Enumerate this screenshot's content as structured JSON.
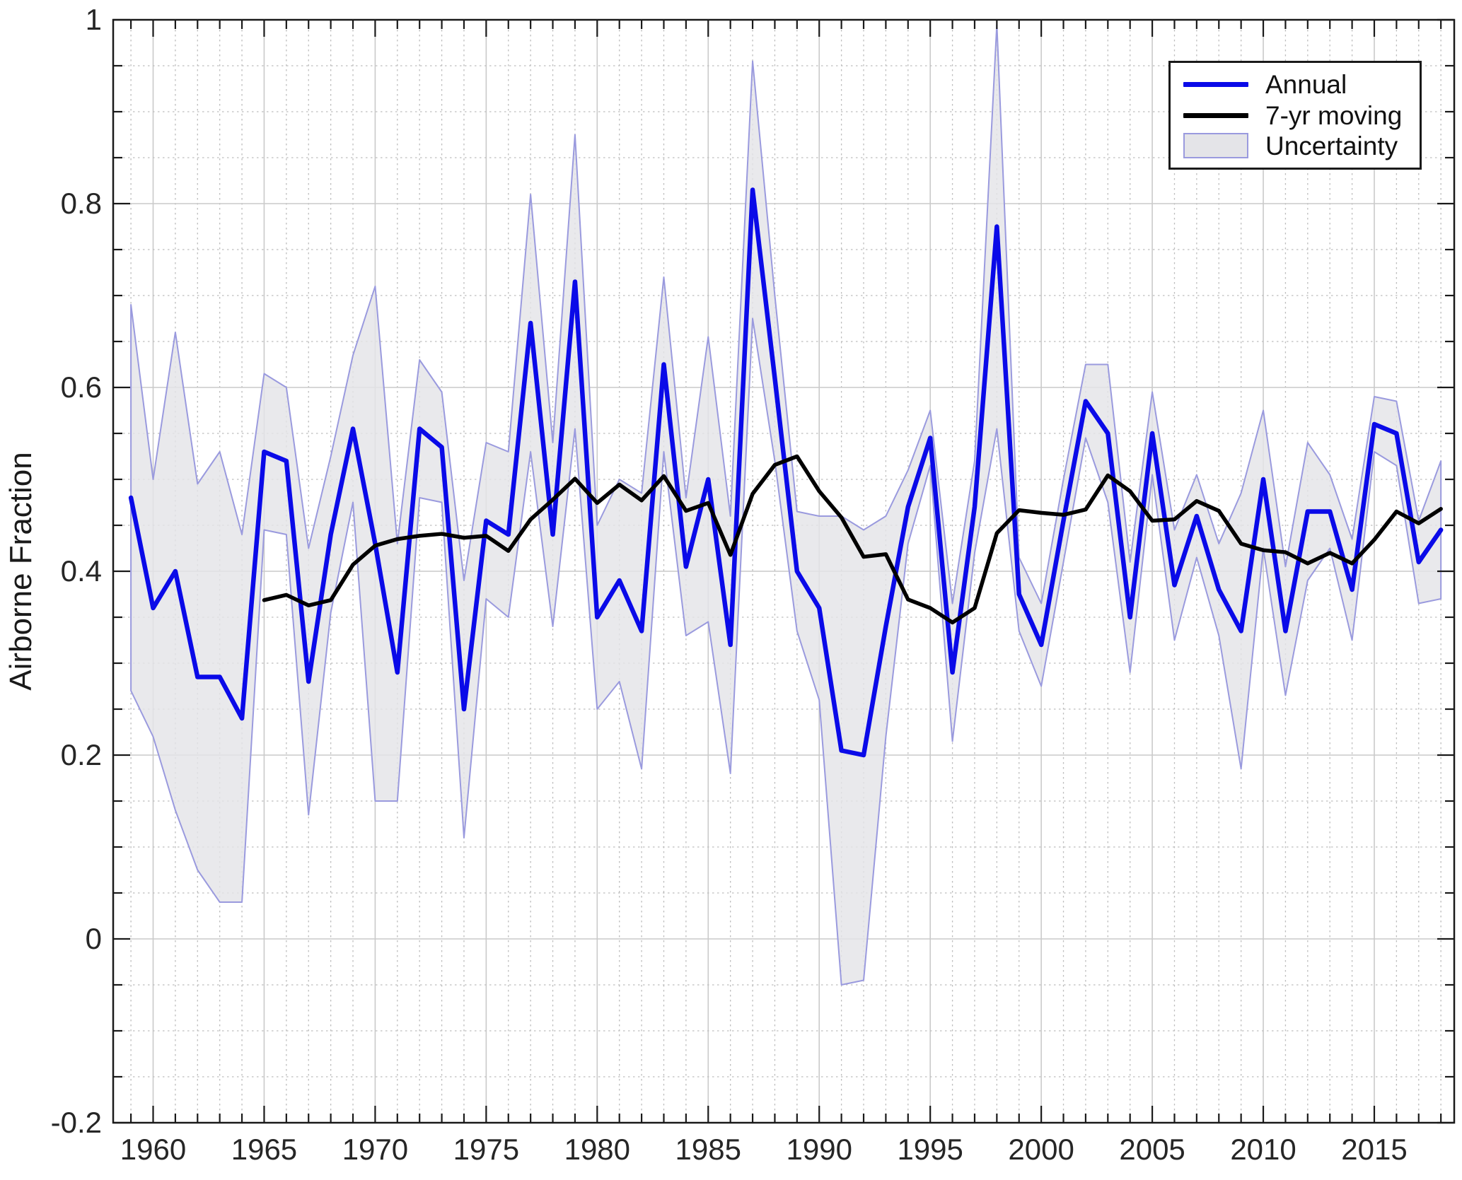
{
  "figure": {
    "y_axis_label": "Airborne Fraction",
    "background": "#ffffff",
    "frame_color": "#1a1a1a"
  },
  "legend": {
    "position": "top-right",
    "items": [
      {
        "label": "Annual",
        "swatch": "line",
        "color": "#0a0ae8"
      },
      {
        "label": "7-yr moving",
        "swatch": "line",
        "color": "#000000"
      },
      {
        "label": "Uncertainty",
        "swatch": "patch",
        "fill": "#e4e4e8",
        "edge": "#9a9ade"
      }
    ]
  },
  "chart_data": {
    "type": "line",
    "title": "",
    "xlabel": "",
    "ylabel": "Airborne Fraction",
    "xlim": [
      1958.2,
      2018.6
    ],
    "ylim": [
      -0.2,
      1.0
    ],
    "grid": "major solid gray + minor dotted gray, both axes",
    "legend_position": "top-right inside axes",
    "x_tick_labels": [
      "1960",
      "1965",
      "1970",
      "1975",
      "1980",
      "1985",
      "1990",
      "1995",
      "2000",
      "2005",
      "2010",
      "2015"
    ],
    "y_tick_labels": [
      "-0.2",
      "0",
      "0.2",
      "0.4",
      "0.6",
      "0.8",
      "1"
    ],
    "x_major_ticks": [
      1960,
      1965,
      1970,
      1975,
      1980,
      1985,
      1990,
      1995,
      2000,
      2005,
      2010,
      2015
    ],
    "y_major_ticks": [
      -0.2,
      0,
      0.2,
      0.4,
      0.6,
      0.8,
      1
    ],
    "x_minor_step_years": 1,
    "y_minor_step": 0.05,
    "years": [
      1959,
      1960,
      1961,
      1962,
      1963,
      1964,
      1965,
      1966,
      1967,
      1968,
      1969,
      1970,
      1971,
      1972,
      1973,
      1974,
      1975,
      1976,
      1977,
      1978,
      1979,
      1980,
      1981,
      1982,
      1983,
      1984,
      1985,
      1986,
      1987,
      1988,
      1989,
      1990,
      1991,
      1992,
      1993,
      1994,
      1995,
      1996,
      1997,
      1998,
      1999,
      2000,
      2001,
      2002,
      2003,
      2004,
      2005,
      2006,
      2007,
      2008,
      2009,
      2010,
      2011,
      2012,
      2013,
      2014,
      2015,
      2016,
      2017,
      2018
    ],
    "series": [
      {
        "name": "Annual",
        "color": "#0a0ae8",
        "values": [
          0.48,
          0.36,
          0.4,
          0.285,
          0.285,
          0.24,
          0.53,
          0.52,
          0.28,
          0.44,
          0.555,
          0.43,
          0.29,
          0.555,
          0.535,
          0.25,
          0.455,
          0.44,
          0.67,
          0.44,
          0.715,
          0.35,
          0.39,
          0.335,
          0.625,
          0.405,
          0.5,
          0.32,
          0.815,
          0.61,
          0.4,
          0.36,
          0.205,
          0.2,
          0.34,
          0.47,
          0.545,
          0.29,
          0.47,
          0.775,
          0.375,
          0.32,
          0.455,
          0.585,
          0.55,
          0.35,
          0.55,
          0.385,
          0.46,
          0.38,
          0.335,
          0.5,
          0.335,
          0.465,
          0.465,
          0.38,
          0.56,
          0.55,
          0.41,
          0.445
        ]
      },
      {
        "name": "7-yr moving",
        "color": "#000000",
        "derivation": "trailing 7-year mean of Annual, first point 1965, last point 2018"
      }
    ],
    "uncertainty": {
      "name": "Uncertainty",
      "fill": "#e4e4e8",
      "edge": "#9a9ade",
      "half_width": [
        0.21,
        0.14,
        0.26,
        0.21,
        0.245,
        0.2,
        0.085,
        0.08,
        0.145,
        0.085,
        0.08,
        0.28,
        0.14,
        0.075,
        0.06,
        0.14,
        0.085,
        0.09,
        0.14,
        0.1,
        0.16,
        0.1,
        0.11,
        0.15,
        0.095,
        0.075,
        0.155,
        0.14,
        0.14,
        0.09,
        0.065,
        0.1,
        0.255,
        0.245,
        0.12,
        0.04,
        0.03,
        0.075,
        0.05,
        0.22,
        0.04,
        0.045,
        0.045,
        0.04,
        0.075,
        0.06,
        0.045,
        0.06,
        0.045,
        0.05,
        0.15,
        0.075,
        0.07,
        0.075,
        0.04,
        0.055,
        0.03,
        0.035,
        0.045,
        0.075
      ]
    }
  }
}
